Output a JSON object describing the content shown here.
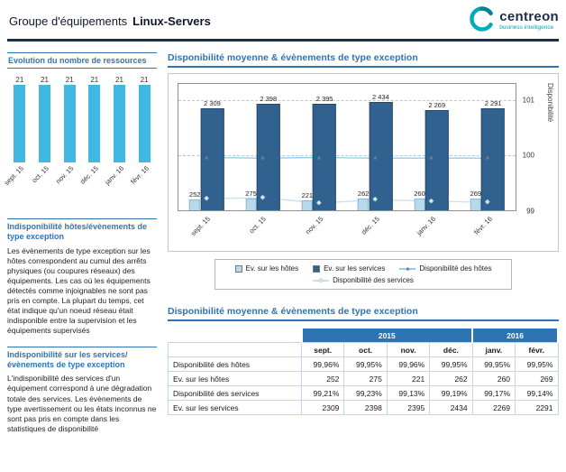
{
  "colors": {
    "accent_blue": "#2e74b5",
    "dark_navy": "#1b2f54",
    "logo_teal": "#00adb8",
    "sidebar_bar": "#41b8e2",
    "hosts_bar": "#b8d9ec",
    "services_bar": "#31618f",
    "hosts_line": "#8fd0e8",
    "hosts_marker": "#6f7f8d",
    "services_line": "#c9dfec",
    "services_marker": "#cfe3ee",
    "table_header_bg": "#2e74b5",
    "table_border": "#bdd7ee"
  },
  "header": {
    "title_prefix": "Groupe d'équipements",
    "title_name": "Linux-Servers",
    "logo_text": "centreon",
    "logo_subtitle": "business intelligence"
  },
  "sidebar": {
    "resources_title": "Evolution du nombre de ressources",
    "hosts_section_title": "Indisponibilité  hôtes/évènements de type exception",
    "hosts_section_body": "Les évènements de type exception sur les hôtes correspondent au cumul des arrêts physiques (ou coupures réseaux) des équipements. Les cas où les équipements détectés comme injoignables ne sont pas pris en compte. La plupart du temps, cet état indique qu'un noeud réseau était indisponible entre la supervision et les équipements supervisés",
    "services_section_title": "Indisponibilité sur les services/ évènements de type exception",
    "services_section_body": "L'indisponibilité des services d'un équipement correspond à une dégradation totale des services. Les évènements de type avertissement ou les états inconnus ne sont pas pris en compte dans les statistiques de disponibilité"
  },
  "main": {
    "chart_title": "Disponibilité moyenne & évènements de type exception",
    "table_title": "Disponibilité moyenne & évènements de type exception",
    "right_axis_title": "Disponibilité",
    "table": {
      "year_groups": [
        {
          "label": "2015",
          "span": 4
        },
        {
          "label": "2016",
          "span": 2
        }
      ],
      "months": [
        "sept.",
        "oct.",
        "nov.",
        "déc.",
        "janv.",
        "févr."
      ],
      "rows": [
        {
          "label": "Disponibilité des hôtes",
          "values": [
            "99,96%",
            "99,95%",
            "99,96%",
            "99,95%",
            "99,95%",
            "99,95%"
          ]
        },
        {
          "label": "Ev. sur les hôtes",
          "values": [
            "252",
            "275",
            "221",
            "262",
            "260",
            "269"
          ]
        },
        {
          "label": "Disponibilité des services",
          "values": [
            "99,21%",
            "99,23%",
            "99,13%",
            "99,19%",
            "99,17%",
            "99,14%"
          ]
        },
        {
          "label": "Ev. sur les services",
          "values": [
            "2309",
            "2398",
            "2395",
            "2434",
            "2269",
            "2291"
          ]
        }
      ]
    }
  },
  "chart_data": [
    {
      "type": "bar",
      "title": "Evolution du nombre de ressources",
      "categories": [
        "sept. 15",
        "oct. 15",
        "nov. 15",
        "déc. 15",
        "janv. 16",
        "févr. 16"
      ],
      "values": [
        21,
        21,
        21,
        21,
        21,
        21
      ],
      "ylim": [
        0,
        21
      ],
      "legend_position": "none"
    },
    {
      "type": "bar",
      "subtype": "bar+line-combo",
      "title": "Disponibilité moyenne & évènements de type exception",
      "categories": [
        "sept. 15",
        "oct. 15",
        "nov. 15",
        "déc. 15",
        "janv. 16",
        "févr. 16"
      ],
      "series": [
        {
          "name": "Ev. sur les hôtes",
          "kind": "bar",
          "axis": "left",
          "values": [
            252,
            275,
            221,
            262,
            260,
            269
          ],
          "color": "#b8d9ec",
          "marker": "square"
        },
        {
          "name": "Ev. sur les services",
          "kind": "bar",
          "axis": "left",
          "values": [
            2309,
            2398,
            2395,
            2434,
            2269,
            2291
          ],
          "color": "#31618f",
          "marker": "square"
        },
        {
          "name": "Disponibilité des hôtes",
          "kind": "line",
          "axis": "right",
          "values": [
            99.96,
            99.95,
            99.96,
            99.95,
            99.95,
            99.95
          ],
          "color": "#8fd0e8",
          "marker": "triangle",
          "marker_color": "#6f7f8d"
        },
        {
          "name": "Disponibilité des services",
          "kind": "line",
          "axis": "right",
          "values": [
            99.21,
            99.23,
            99.13,
            99.19,
            99.17,
            99.14
          ],
          "color": "#c9dfec",
          "marker": "diamond",
          "marker_color": "#cfe3ee"
        }
      ],
      "left_axis": {
        "range": [
          0,
          2850
        ],
        "visible": false
      },
      "right_axis": {
        "label": "Disponibilité",
        "ticks": [
          101,
          100,
          99
        ],
        "range": [
          99,
          101.3
        ]
      },
      "grid": "dashed-horizontal",
      "legend_position": "bottom"
    }
  ]
}
